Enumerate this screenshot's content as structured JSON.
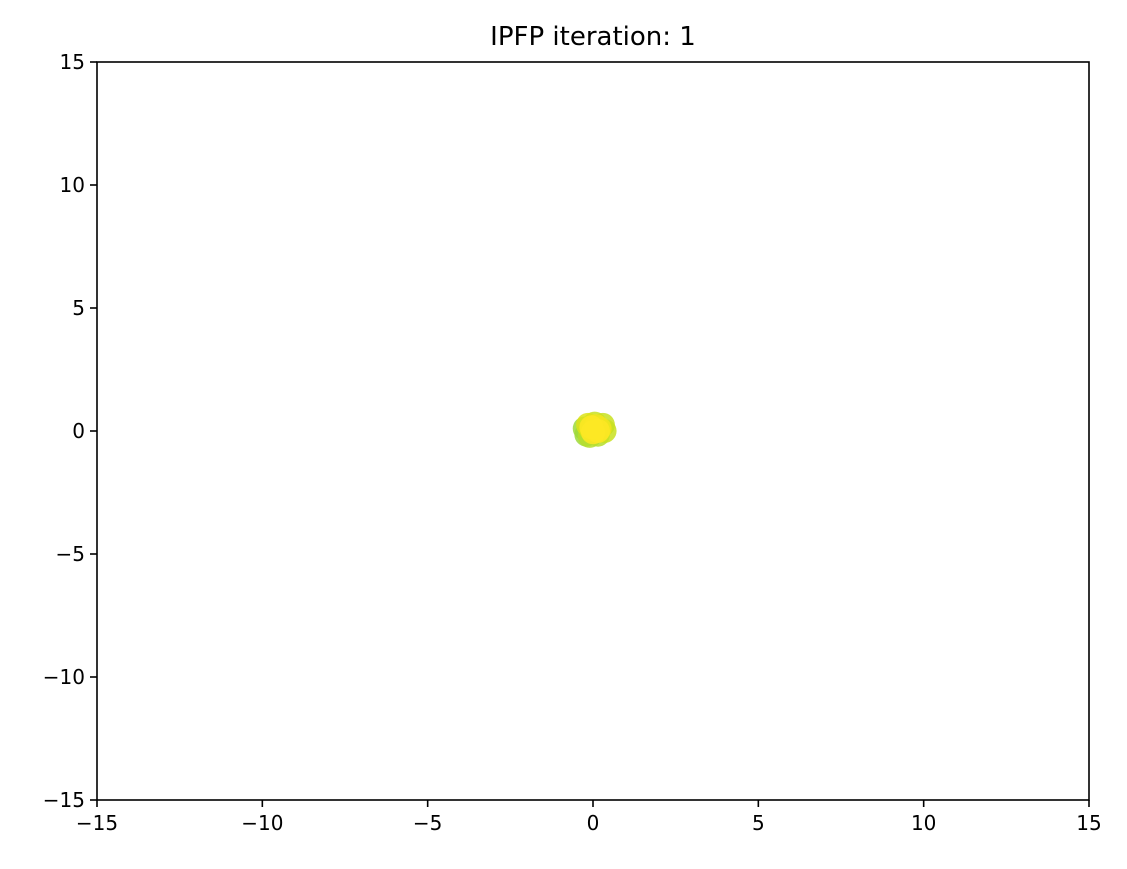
{
  "chart_data": {
    "type": "scatter",
    "title": "IPFP iteration: 1",
    "xlabel": "",
    "ylabel": "",
    "xlim": [
      -15,
      15
    ],
    "ylim": [
      -15,
      15
    ],
    "xticks": [
      -15,
      -10,
      -5,
      0,
      5,
      10,
      15
    ],
    "yticks": [
      -15,
      -10,
      -5,
      0,
      5,
      10,
      15
    ],
    "xtick_labels": [
      "−15",
      "−10",
      "−5",
      "0",
      "5",
      "10",
      "15"
    ],
    "ytick_labels": [
      "−15",
      "−10",
      "−5",
      "0",
      "5",
      "10",
      "15"
    ],
    "grid": false,
    "colors": [
      "#9ed93a",
      "#b5de2b",
      "#c8e020",
      "#dde318",
      "#f1e51d",
      "#fde725"
    ],
    "points": [
      {
        "x": -0.25,
        "y": 0.1,
        "c": 0
      },
      {
        "x": -0.2,
        "y": -0.15,
        "c": 0
      },
      {
        "x": -0.1,
        "y": -0.2,
        "c": 1
      },
      {
        "x": 0.15,
        "y": -0.15,
        "c": 1
      },
      {
        "x": 0.35,
        "y": 0.0,
        "c": 2
      },
      {
        "x": 0.3,
        "y": 0.25,
        "c": 2
      },
      {
        "x": 0.05,
        "y": 0.3,
        "c": 2
      },
      {
        "x": -0.15,
        "y": 0.25,
        "c": 3
      },
      {
        "x": -0.05,
        "y": 0.05,
        "c": 3
      },
      {
        "x": 0.2,
        "y": 0.1,
        "c": 4
      },
      {
        "x": 0.1,
        "y": 0.2,
        "c": 4
      },
      {
        "x": 0.0,
        "y": -0.05,
        "c": 5
      },
      {
        "x": 0.15,
        "y": 0.0,
        "c": 5
      },
      {
        "x": -0.05,
        "y": 0.15,
        "c": 5
      }
    ]
  }
}
